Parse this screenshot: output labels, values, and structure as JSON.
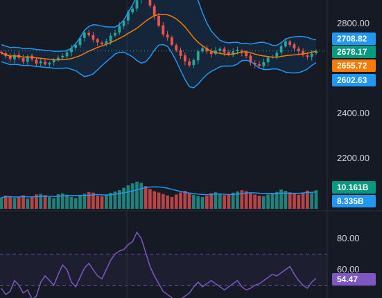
{
  "price_axis": {
    "ticks": [
      "2800.00",
      "2400.00",
      "2200.00"
    ],
    "badges": [
      {
        "label": "2708.82",
        "color": "#2196f3"
      },
      {
        "label": "2678.17",
        "color": "#089981"
      },
      {
        "label": "2655.72",
        "color": "#f57c00"
      },
      {
        "label": "2602.63",
        "color": "#2196f3"
      }
    ]
  },
  "volume_axis": {
    "badges": [
      {
        "label": "10.161B",
        "color": "#089981"
      },
      {
        "label": "8.335B",
        "color": "#2196f3"
      }
    ]
  },
  "rsi_axis": {
    "ticks": [
      "80.00",
      "60.00"
    ],
    "badge": {
      "label": "54.47",
      "color": "#7e57c2"
    }
  },
  "colors": {
    "up": "#26a69a",
    "down": "#ef5350",
    "bollinger": "#2196f3",
    "basis": "#f57c00",
    "rsi": "#7e57c2",
    "background": "#161a25"
  },
  "chart_data": [
    {
      "type": "candlestick",
      "series": [
        {
          "name": "price",
          "values": [
            2668,
            2655,
            2642,
            2660,
            2648,
            2630,
            2655,
            2640,
            2622,
            2632,
            2618,
            2625,
            2638,
            2648,
            2656,
            2672,
            2690,
            2705,
            2735,
            2760,
            2748,
            2728,
            2716,
            2708,
            2722,
            2746,
            2758,
            2790,
            2812,
            2852,
            2866,
            2904,
            2930,
            2918,
            2880,
            2834,
            2790,
            2752,
            2738,
            2705,
            2682,
            2656,
            2632,
            2614,
            2638,
            2676,
            2690,
            2676,
            2664,
            2680,
            2688,
            2671,
            2661,
            2676,
            2682,
            2672,
            2655,
            2626,
            2618,
            2612,
            2628,
            2648,
            2653,
            2670,
            2700,
            2720,
            2705,
            2689,
            2677,
            2660,
            2652,
            2666,
            2678
          ]
        }
      ],
      "overlays": [
        "upper band",
        "basis",
        "lower band",
        "last price"
      ]
    },
    {
      "type": "bar",
      "series": [
        {
          "name": "volume",
          "values": [
            6.1,
            7.2,
            6.5,
            5.9,
            6.8,
            7.4,
            5.6,
            6.2,
            7.8,
            8.1,
            7.5,
            6.4,
            5.8,
            7.9,
            8.4,
            7.7,
            6.5,
            5.9,
            7.6,
            8.3,
            9.1,
            8.8,
            7.2,
            6.9,
            7.5,
            8.7,
            9.4,
            10.2,
            11.5,
            12.8,
            13.9,
            14.8,
            14.2,
            12.4,
            10.8,
            9.6,
            8.9,
            8.1,
            7.3,
            6.5,
            7.8,
            8.9,
            9.8,
            8.4,
            7.6,
            6.9,
            6.4,
            7.2,
            8.5,
            9.1,
            8.2,
            7.5,
            7.9,
            8.8,
            9.5,
            10.1,
            9.6,
            8.4,
            7.7,
            7.1,
            6.9,
            7.8,
            8.4,
            9.2,
            10.5,
            9.8,
            9.0,
            8.3,
            7.6,
            8.8,
            9.9,
            8.6,
            10.161
          ]
        },
        {
          "name": "volume ma",
          "values": [
            8.335
          ]
        }
      ]
    },
    {
      "type": "line",
      "series": [
        {
          "name": "rsi",
          "values": [
            48,
            44,
            46,
            53,
            50,
            45,
            47,
            41,
            43,
            52,
            56,
            53,
            50,
            57,
            63,
            60,
            52,
            49,
            55,
            61,
            64,
            60,
            56,
            54,
            60,
            66,
            70,
            72,
            73,
            76,
            78,
            84,
            80,
            71,
            62,
            56,
            51,
            46,
            44,
            42,
            40,
            41,
            43,
            45,
            49,
            52,
            49,
            51,
            53,
            51,
            49,
            47,
            49,
            51,
            53,
            49,
            47,
            48,
            50,
            51,
            53,
            55,
            57,
            56,
            58,
            60,
            62,
            57,
            53,
            50,
            48,
            52,
            54.47
          ]
        }
      ],
      "bands": [
        70,
        50
      ]
    }
  ]
}
